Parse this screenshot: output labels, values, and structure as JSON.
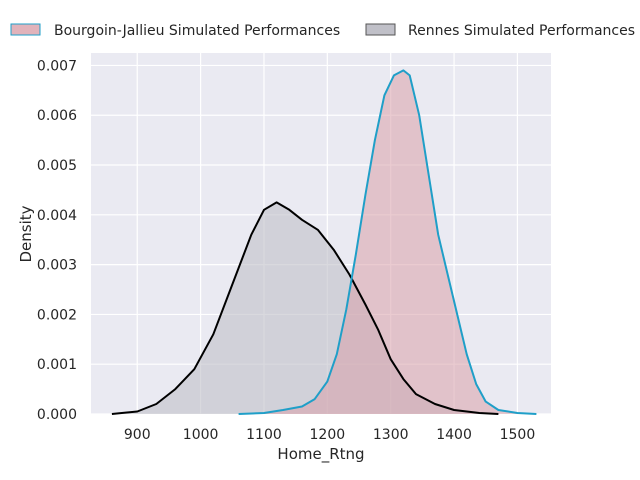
{
  "chart_data": {
    "type": "area",
    "xlabel": "Home_Rtng",
    "ylabel": "Density",
    "xlim": [
      827,
      1553
    ],
    "ylim": [
      0,
      0.00725
    ],
    "x_ticks": [
      900,
      1000,
      1100,
      1200,
      1300,
      1400,
      1500
    ],
    "y_ticks": [
      0.0,
      0.001,
      0.002,
      0.003,
      0.004,
      0.005,
      0.006,
      0.007
    ],
    "x_tick_labels": [
      "900",
      "1000",
      "1100",
      "1200",
      "1300",
      "1400",
      "1500"
    ],
    "y_tick_labels": [
      "0.000",
      "0.001",
      "0.002",
      "0.003",
      "0.004",
      "0.005",
      "0.006",
      "0.007"
    ],
    "grid": true,
    "legend_position": "top",
    "series": [
      {
        "name": "Bourgoin-Jallieu Simulated Performances",
        "line_color": "#1f9fc8",
        "fill_color": "#d9a0aa",
        "points": [
          [
            1060,
            0.0
          ],
          [
            1100,
            2e-05
          ],
          [
            1130,
            8e-05
          ],
          [
            1160,
            0.00015
          ],
          [
            1180,
            0.0003
          ],
          [
            1200,
            0.00065
          ],
          [
            1215,
            0.0012
          ],
          [
            1230,
            0.0021
          ],
          [
            1245,
            0.0032
          ],
          [
            1260,
            0.0044
          ],
          [
            1275,
            0.0055
          ],
          [
            1290,
            0.0064
          ],
          [
            1305,
            0.0068
          ],
          [
            1320,
            0.0069
          ],
          [
            1330,
            0.0068
          ],
          [
            1345,
            0.006
          ],
          [
            1360,
            0.0048
          ],
          [
            1375,
            0.0036
          ],
          [
            1390,
            0.0028
          ],
          [
            1405,
            0.002
          ],
          [
            1420,
            0.0012
          ],
          [
            1435,
            0.0006
          ],
          [
            1450,
            0.00025
          ],
          [
            1470,
            8e-05
          ],
          [
            1500,
            2e-05
          ],
          [
            1530,
            0.0
          ]
        ]
      },
      {
        "name": "Rennes Simulated Performances",
        "line_color": "#000000",
        "fill_color": "#c0c0c8",
        "points": [
          [
            860,
            0.0
          ],
          [
            900,
            5e-05
          ],
          [
            930,
            0.0002
          ],
          [
            960,
            0.0005
          ],
          [
            990,
            0.0009
          ],
          [
            1020,
            0.0016
          ],
          [
            1050,
            0.0026
          ],
          [
            1080,
            0.0036
          ],
          [
            1100,
            0.0041
          ],
          [
            1120,
            0.00425
          ],
          [
            1140,
            0.0041
          ],
          [
            1160,
            0.0039
          ],
          [
            1185,
            0.0037
          ],
          [
            1210,
            0.0033
          ],
          [
            1235,
            0.0028
          ],
          [
            1260,
            0.0022
          ],
          [
            1280,
            0.0017
          ],
          [
            1300,
            0.0011
          ],
          [
            1320,
            0.0007
          ],
          [
            1340,
            0.0004
          ],
          [
            1370,
            0.0002
          ],
          [
            1400,
            8e-05
          ],
          [
            1440,
            2e-05
          ],
          [
            1470,
            0.0
          ]
        ]
      }
    ]
  }
}
